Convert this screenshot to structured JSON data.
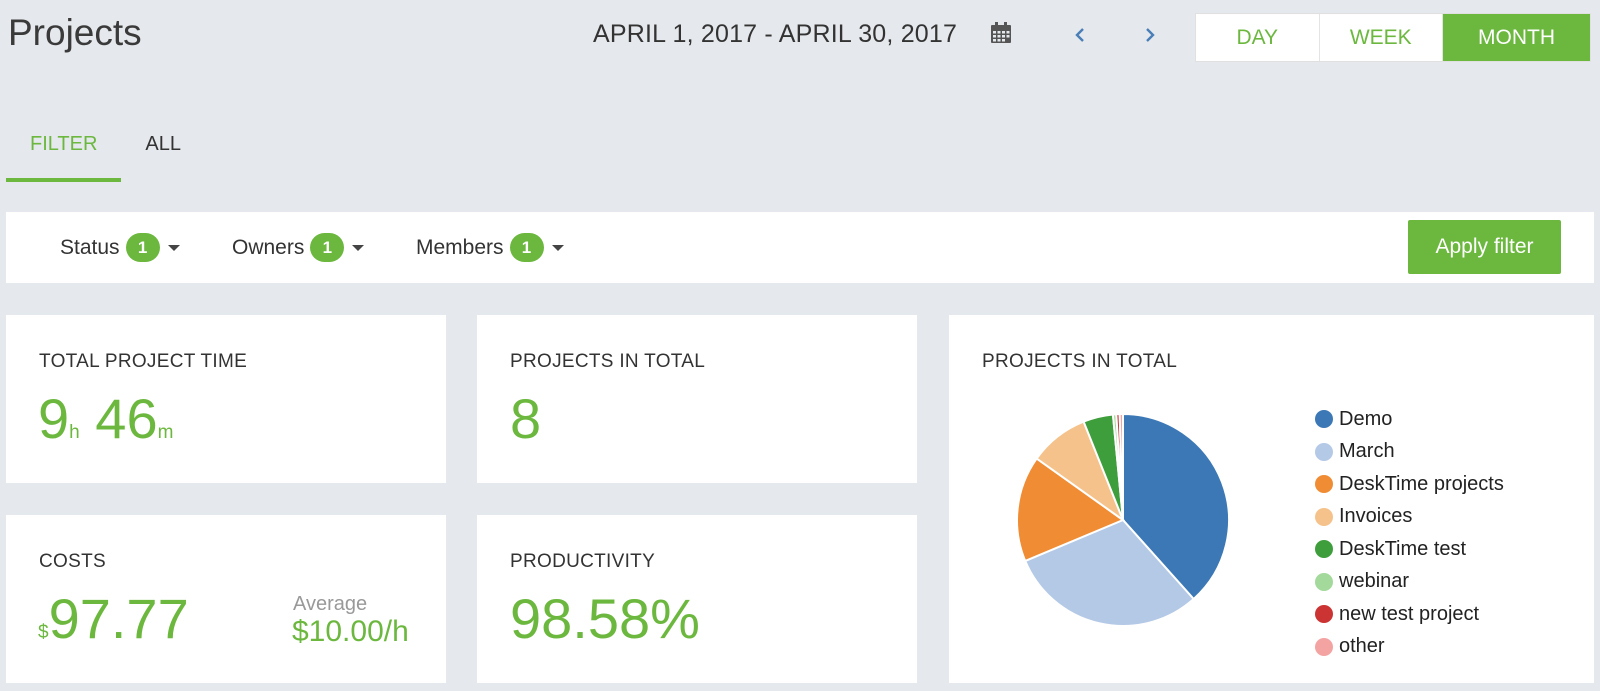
{
  "header": {
    "title": "Projects",
    "date_range": "APRIL 1, 2017 - APRIL 30, 2017",
    "periods": [
      {
        "label": "DAY",
        "active": false
      },
      {
        "label": "WEEK",
        "active": false
      },
      {
        "label": "MONTH",
        "active": true
      }
    ]
  },
  "tabs": [
    {
      "label": "FILTER",
      "active": true
    },
    {
      "label": "ALL",
      "active": false
    }
  ],
  "filters": {
    "status": {
      "label": "Status",
      "count": "1"
    },
    "owners": {
      "label": "Owners",
      "count": "1"
    },
    "members": {
      "label": "Members",
      "count": "1"
    },
    "apply_label": "Apply filter"
  },
  "stats": {
    "total_time": {
      "title": "TOTAL PROJECT TIME",
      "hours": "9",
      "hours_unit": "h",
      "minutes": "46",
      "minutes_unit": "m"
    },
    "projects_total": {
      "title": "PROJECTS IN TOTAL",
      "value": "8"
    },
    "costs": {
      "title": "COSTS",
      "currency": "$",
      "value": "97.77",
      "average_label": "Average",
      "average_value": "$10.00/h"
    },
    "productivity": {
      "title": "PRODUCTIVITY",
      "value": "98.58%"
    }
  },
  "chart_data": {
    "type": "pie",
    "title": "PROJECTS IN TOTAL",
    "series": [
      {
        "name": "Demo",
        "value": 38,
        "color": "#3b78b5"
      },
      {
        "name": "March",
        "value": 30,
        "color": "#b4c9e6"
      },
      {
        "name": "DeskTime projects",
        "value": 16,
        "color": "#ef8c34"
      },
      {
        "name": "Invoices",
        "value": 9,
        "color": "#f5c28b"
      },
      {
        "name": "DeskTime test",
        "value": 4.5,
        "color": "#3e9e3c"
      },
      {
        "name": "webinar",
        "value": 0.5,
        "color": "#a3d99b"
      },
      {
        "name": "new test project",
        "value": 0.5,
        "color": "#cc3333"
      },
      {
        "name": "other",
        "value": 0.5,
        "color": "#f4a3a3"
      }
    ],
    "legend_position": "right"
  }
}
